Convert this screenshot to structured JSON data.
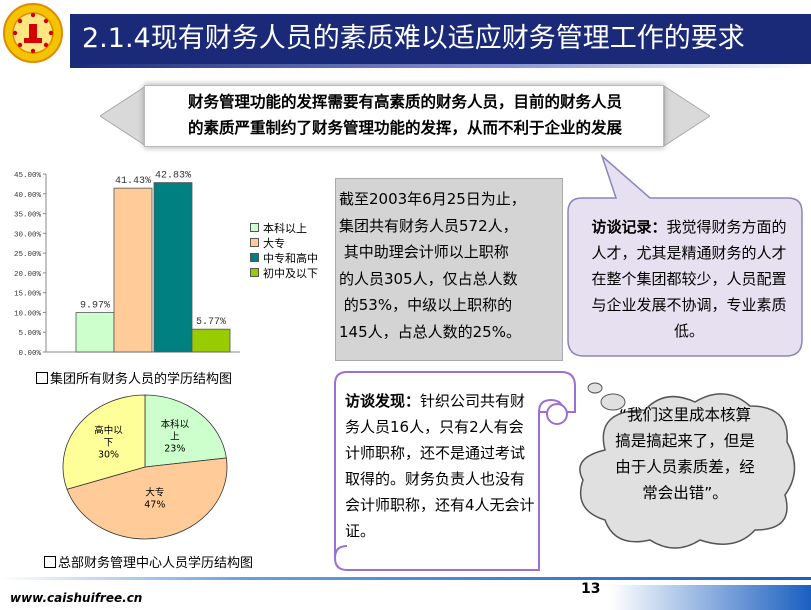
{
  "slide": {
    "title": "2.1.4现有财务人员的素质难以适应财务管理工作的要求",
    "subtitle_lines": [
      "财务管理功能的发挥需要有高素质的财务人员，目前的财务人员",
      "的素质严重制约了财务管理功能的发挥，从而不利于企业的发展"
    ],
    "stats_lines": [
      "截至2003年6月25日为止，",
      "集团共有财务人员572人，",
      " 其中助理会计师以上职称",
      "的人员305人，仅占总人数",
      " 的53%，中级以上职称的",
      "145人，占总人数的25%。"
    ],
    "interview_label": "访谈记录：",
    "interview_text": "我觉得财务方面的人才，尤其是精通财务的人才在整个集团都较少，人员配置与企业发展不协调，专业素质低。",
    "finding_label": "访谈发现：",
    "finding_text": "针织公司共有财务人员16人，只有2人有会计师职称，还不是通过考试取得的。财务负责人也没有会计师职称，还有4人无会计证。",
    "quote": "“我们这里成本核算搞是搞起来了，但是由于人员素质差，经常会出错”。",
    "bar_caption": "集团所有财务人员的学历结构图",
    "pie_caption": "总部财务管理中心人员学历结构图",
    "footer_url": "www.caishuifree.cn",
    "page_number": "13",
    "colors": {
      "title_bg": "#1a2a78",
      "footer_blue": "#1a5fc0"
    }
  },
  "chart_data": [
    {
      "type": "bar",
      "categories": [
        "本科以上",
        "大专",
        "中专和高中",
        "初中及以下"
      ],
      "values": [
        9.97,
        41.43,
        42.83,
        5.77
      ],
      "value_labels": [
        "9.97%",
        "41.43%",
        "42.83%",
        "5.77%"
      ],
      "colors": [
        "#ccffcc",
        "#ffcc99",
        "#008080",
        "#99cc00"
      ],
      "yticks": [
        "0.00%",
        "5.00%",
        "10.00%",
        "15.00%",
        "20.00%",
        "25.00%",
        "30.00%",
        "35.00%",
        "40.00%",
        "45.00%"
      ],
      "ylim": [
        0,
        45
      ],
      "legend": "right"
    },
    {
      "type": "pie",
      "slices": [
        {
          "label": "本科以上",
          "value": 23,
          "value_label": "23%",
          "color": "#ccffcc"
        },
        {
          "label": "大专",
          "value": 47,
          "value_label": "47%",
          "color": "#ffcc99"
        },
        {
          "label": "高中以下",
          "value": 30,
          "value_label": "30%",
          "color": "#ffff99"
        }
      ]
    }
  ]
}
